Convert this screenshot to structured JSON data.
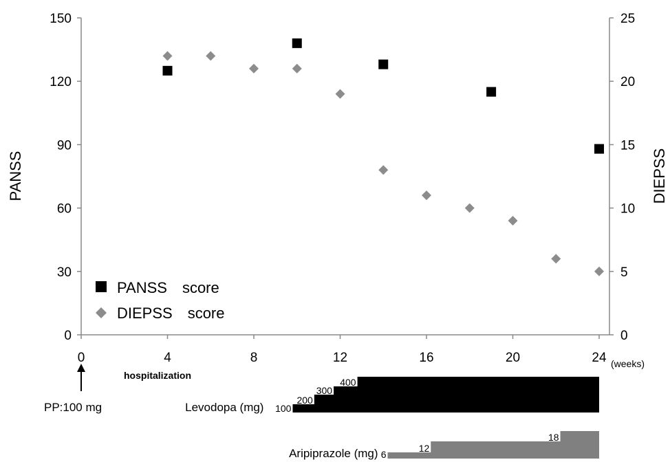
{
  "chart_data": {
    "type": "scatter",
    "xlabel": "(weeks)",
    "ylabel_left": "PANSS",
    "ylabel_right": "DIEPSS",
    "xlim": [
      0,
      24
    ],
    "xticks": [
      0,
      4,
      8,
      12,
      16,
      20,
      24
    ],
    "ylim_left": [
      0,
      150
    ],
    "yticks_left": [
      0,
      30,
      60,
      90,
      120,
      150
    ],
    "ylim_right": [
      0,
      25
    ],
    "yticks_right": [
      0,
      5,
      10,
      15,
      20,
      25
    ],
    "grid": false,
    "legend_position": "bottom-left",
    "series": [
      {
        "name": "PANSS　score",
        "axis": "left",
        "marker": "square",
        "color": "#000000",
        "points": [
          {
            "x": 4,
            "y": 125
          },
          {
            "x": 10,
            "y": 138
          },
          {
            "x": 14,
            "y": 128
          },
          {
            "x": 19,
            "y": 115
          },
          {
            "x": 24,
            "y": 88
          }
        ]
      },
      {
        "name": "DIEPSS　score",
        "axis": "right",
        "marker": "diamond",
        "color": "#8c8c8c",
        "points": [
          {
            "x": 4,
            "y": 22
          },
          {
            "x": 6,
            "y": 22
          },
          {
            "x": 8,
            "y": 21
          },
          {
            "x": 10,
            "y": 21
          },
          {
            "x": 12,
            "y": 19
          },
          {
            "x": 14,
            "y": 13
          },
          {
            "x": 16,
            "y": 11
          },
          {
            "x": 18,
            "y": 10
          },
          {
            "x": 20,
            "y": 9
          },
          {
            "x": 22,
            "y": 6
          },
          {
            "x": 24,
            "y": 5
          }
        ]
      }
    ],
    "annotations": {
      "arrow_week": 0,
      "hospitalization_label": "hospitalization",
      "pp_label": "PP:100 mg"
    },
    "medications": [
      {
        "label": "Levodopa (mg)",
        "color": "#000000",
        "steps": [
          {
            "dose": "100",
            "start": 9.8
          },
          {
            "dose": "200",
            "start": 10.8
          },
          {
            "dose": "300",
            "start": 11.7
          },
          {
            "dose": "400",
            "start": 12.8
          }
        ],
        "end": 24
      },
      {
        "label": "Aripiprazole (mg)",
        "color": "#808080",
        "steps": [
          {
            "dose": "6",
            "start": 14.2
          },
          {
            "dose": "12",
            "start": 16.2
          },
          {
            "dose": "18",
            "start": 22.2
          }
        ],
        "end": 24
      }
    ]
  }
}
